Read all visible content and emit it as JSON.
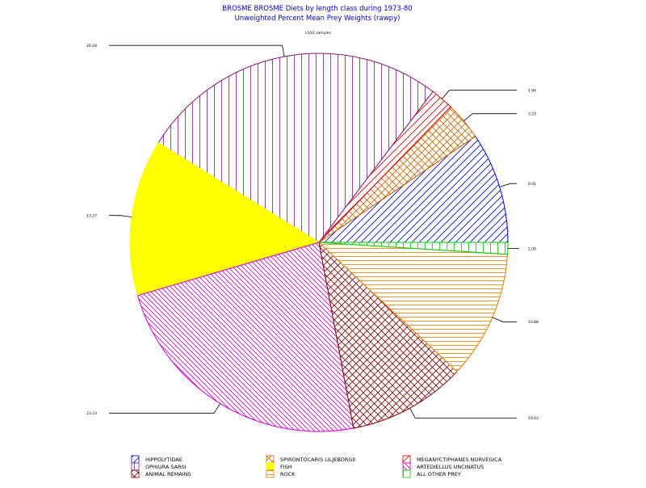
{
  "chart_data": {
    "type": "pie",
    "title": "BROSME BROSME Diets by length class  during  1973-80",
    "subtitle": "Unweighted Percent Mean Prey Weights (rawpy)",
    "header_label": "LGS2 samples",
    "slices": [
      {
        "name": "HIPPOLYTIDAE",
        "value": 9.41,
        "label": "9.41",
        "color": "#0000cc",
        "pattern": "diag-up",
        "legend_text": "HIPPOLYTIDAE"
      },
      {
        "name": "SPIRONTOCARIS LILJEBORGII",
        "value": 3.23,
        "label": "3.23",
        "color": "#c86400",
        "pattern": "cross",
        "legend_text": "SPIRONTOCARIS  LILJEBORGII"
      },
      {
        "name": "MEGANYCTIPHANES NORVEGICA",
        "value": 1.96,
        "label": "1.96",
        "color": "#cc0000",
        "pattern": "diag-up",
        "legend_text": "MEGANYCTIPHANES  NORVEGICA"
      },
      {
        "name": "OPHIURA SARSI",
        "value": 26.28,
        "label": "26.28",
        "color": "#7a1a7a",
        "pattern": "vertical",
        "legend_text": "OPHIURA  SARSI"
      },
      {
        "name": "FISH",
        "value": 13.27,
        "label": "13.27",
        "color": "#ffff00",
        "pattern": "solid",
        "legend_text": "FISH"
      },
      {
        "name": "ARTEDIELLUS UNCINATUS",
        "value": 23.23,
        "label": "23.23",
        "color": "#cc00cc",
        "pattern": "diag-down",
        "legend_text": "ARTEDIELLUS  UNCINATUS"
      },
      {
        "name": "ANIMAL REMAINS",
        "value": 10.03,
        "label": "10.03",
        "color": "#7a0000",
        "pattern": "cross",
        "legend_text": "ANIMAL  REMAINS"
      },
      {
        "name": "ROCK",
        "value": 10.88,
        "label": "10.88",
        "color": "#e08000",
        "pattern": "horizontal",
        "legend_text": "ROCK"
      },
      {
        "name": "ALL OTHER PREY",
        "value": 1.0,
        "label": "1.00",
        "color": "#00c800",
        "pattern": "vertical",
        "legend_text": "ALL  OTHER  PREY"
      }
    ],
    "legend_order": [
      0,
      1,
      2,
      3,
      4,
      5,
      6,
      7,
      8
    ],
    "legend_placement": "bottom"
  }
}
